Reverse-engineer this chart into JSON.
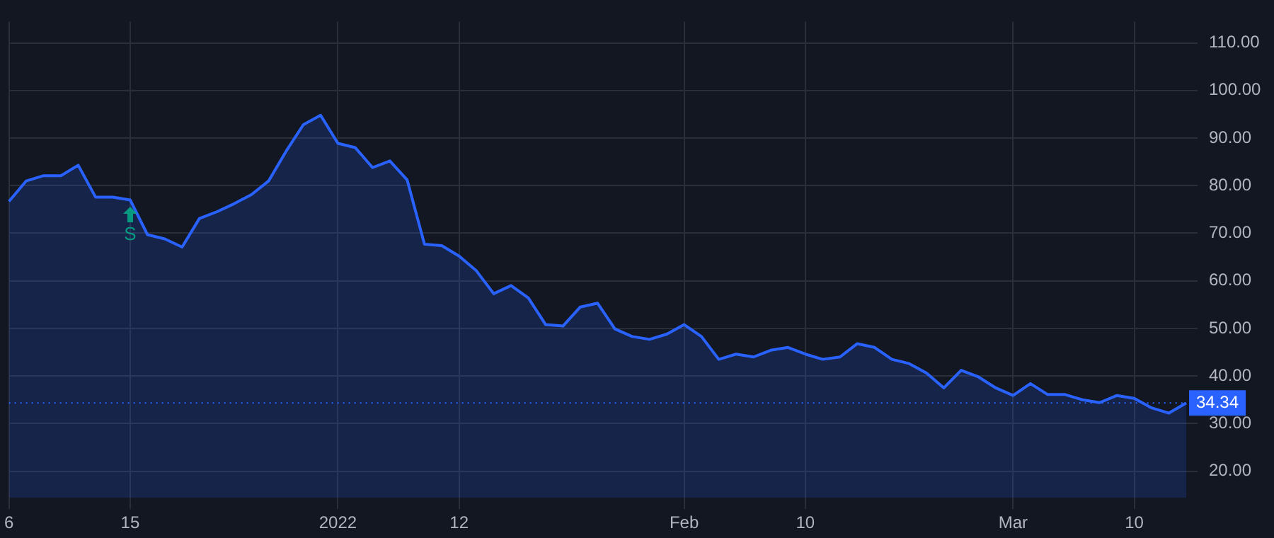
{
  "chart_data": {
    "type": "area",
    "categories": [
      "6",
      null,
      null,
      null,
      null,
      null,
      null,
      "15",
      null,
      null,
      null,
      null,
      null,
      null,
      null,
      null,
      null,
      null,
      null,
      "2022",
      null,
      null,
      null,
      null,
      null,
      null,
      "12",
      null,
      null,
      null,
      null,
      null,
      null,
      null,
      null,
      null,
      null,
      null,
      null,
      "Feb",
      null,
      null,
      null,
      null,
      null,
      null,
      "10",
      null,
      null,
      null,
      null,
      null,
      null,
      null,
      null,
      null,
      null,
      null,
      "Mar",
      null,
      null,
      null,
      null,
      null,
      null,
      "10",
      null,
      null,
      null
    ],
    "series": [
      {
        "color": "#2962ff",
        "values": [
          76.7,
          81.0,
          82.1,
          82.1,
          84.3,
          77.6,
          77.6,
          77.0,
          69.7,
          68.8,
          67.1,
          73.1,
          74.5,
          76.2,
          78.1,
          81.0,
          87.2,
          92.8,
          94.8,
          88.9,
          88.0,
          83.8,
          85.2,
          81.2,
          67.7,
          67.4,
          65.2,
          62.1,
          57.3,
          59.0,
          56.4,
          50.8,
          50.5,
          54.5,
          55.3,
          49.9,
          48.3,
          47.7,
          48.8,
          50.8,
          48.3,
          43.5,
          44.6,
          44.0,
          45.4,
          46.0,
          44.6,
          43.5,
          44.0,
          46.8,
          46.0,
          43.5,
          42.6,
          40.6,
          37.5,
          41.2,
          39.8,
          37.5,
          35.9,
          38.4,
          36.1,
          36.1,
          35.0,
          34.4,
          35.9,
          35.3,
          33.3,
          32.2,
          34.34
        ]
      }
    ],
    "ylim": [
      14.4,
      114.5
    ],
    "yticks": [
      {
        "value": 20,
        "label": "20.00"
      },
      {
        "value": 30,
        "label": "30.00"
      },
      {
        "value": 40,
        "label": "40.00"
      },
      {
        "value": 50,
        "label": "50.00"
      },
      {
        "value": 60,
        "label": "60.00"
      },
      {
        "value": 70,
        "label": "70.00"
      },
      {
        "value": 80,
        "label": "80.00"
      },
      {
        "value": 90,
        "label": "90.00"
      },
      {
        "value": 100,
        "label": "100.00"
      },
      {
        "value": 110,
        "label": "110.00"
      }
    ],
    "grid": true,
    "legend": false,
    "ref_lines": [
      {
        "axis": "y",
        "value": 34.34,
        "label": "34.34",
        "color": "#2962ff",
        "line_style": "dotted"
      }
    ],
    "annotations": [
      {
        "text": "S",
        "x": "15",
        "y": 77.0
      }
    ]
  }
}
